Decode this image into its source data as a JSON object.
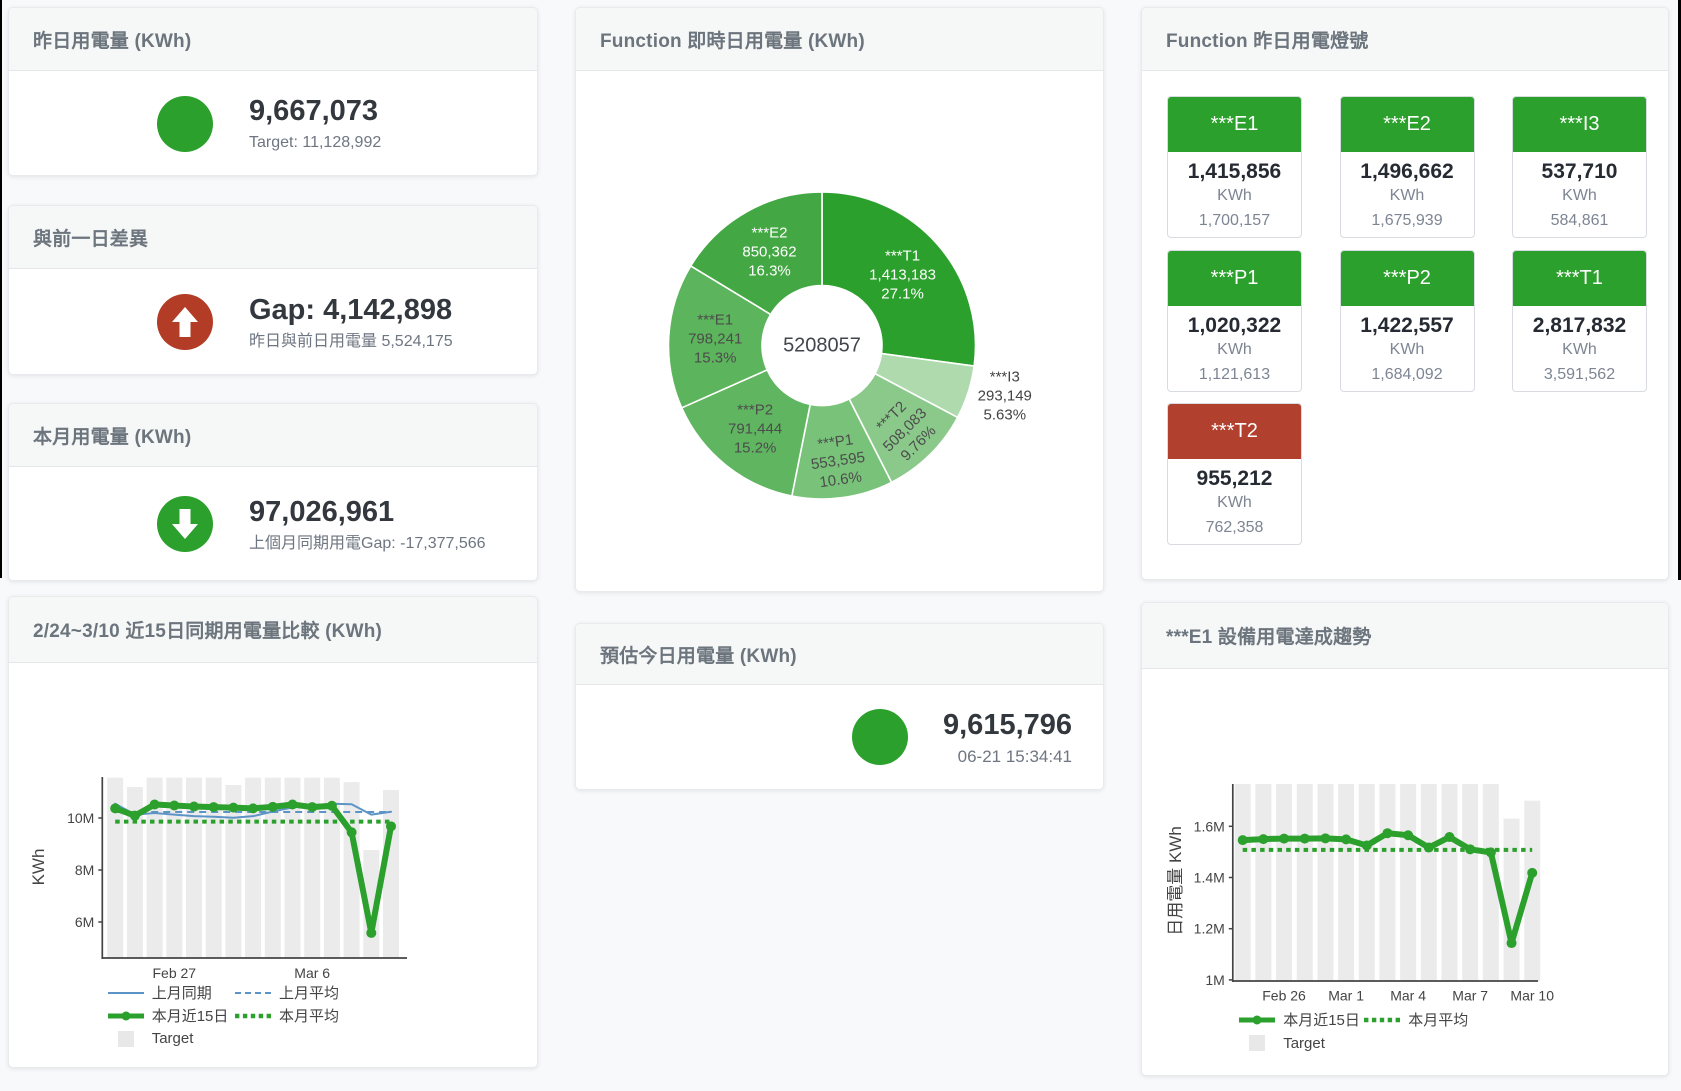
{
  "colors": {
    "green": "#2ca02c",
    "red": "#b23c26",
    "blue": "#5d94c6",
    "target_bar": "#ebebeb",
    "tile_green": "#2ca02c",
    "tile_red": "#b2402e"
  },
  "cards": {
    "yesterday": {
      "title": "昨日用電量 (KWh)",
      "value": "9,667,073",
      "subtitle": "Target: 11,128,992",
      "indicator": "circle",
      "status_color": "#2ca02c"
    },
    "gap_prev_day": {
      "title": "與前一日差異",
      "value": "Gap: 4,142,898",
      "subtitle": "昨日與前日用電量 5,524,175",
      "indicator": "arrow-up",
      "status_color": "#b23c26"
    },
    "month": {
      "title": "本月用電量 (KWh)",
      "value": "97,026,961",
      "subtitle": "上個月同期用電Gap: -17,377,566",
      "indicator": "arrow-down",
      "status_color": "#2ca02c"
    },
    "today_estimate": {
      "title": "預估今日用電量 (KWh)",
      "value": "9,615,796",
      "subtitle": "06-21 15:34:41",
      "indicator": "circle",
      "status_color": "#2ca02c"
    },
    "realtime_donut": {
      "title": "Function 即時日用電量 (KWh)"
    },
    "lights": {
      "title": "Function 昨日用電燈號",
      "unit": "KWh",
      "tiles": [
        {
          "name": "***E1",
          "value": "1,415,856",
          "unit": "KWh",
          "target": "1,700,157",
          "status": "green"
        },
        {
          "name": "***E2",
          "value": "1,496,662",
          "unit": "KWh",
          "target": "1,675,939",
          "status": "green"
        },
        {
          "name": "***I3",
          "value": "537,710",
          "unit": "KWh",
          "target": "584,861",
          "status": "green"
        },
        {
          "name": "***P1",
          "value": "1,020,322",
          "unit": "KWh",
          "target": "1,121,613",
          "status": "green"
        },
        {
          "name": "***P2",
          "value": "1,422,557",
          "unit": "KWh",
          "target": "1,684,092",
          "status": "green"
        },
        {
          "name": "***T1",
          "value": "2,817,832",
          "unit": "KWh",
          "target": "3,591,562",
          "status": "green"
        },
        {
          "name": "***T2",
          "value": "955,212",
          "unit": "KWh",
          "target": "762,358",
          "status": "red"
        }
      ]
    },
    "compare_chart": {
      "title": "2/24~3/10 近15日同期用電量比較 (KWh)"
    },
    "e1_trend_chart": {
      "title": "***E1 設備用電達成趨勢"
    }
  },
  "chart_data": [
    {
      "id": "donut",
      "type": "pie",
      "title": "Function 即時日用電量 (KWh)",
      "center_total": "5208057",
      "slices": [
        {
          "name": "***T1",
          "value": 1413183,
          "display": "1,413,183",
          "pct": "27.1%",
          "color": "#2ca02c",
          "label_pos": "inside",
          "label_color": "#ffffff",
          "label_r": 107,
          "label_rotate": 0
        },
        {
          "name": "***I3",
          "value": 293149,
          "display": "293,149",
          "pct": "5.63%",
          "color": "#aedaae",
          "label_pos": "outside",
          "label_color": "#444444",
          "label_r": 192,
          "label_rotate": 0,
          "label_dy": -8
        },
        {
          "name": "***T2",
          "value": 508083,
          "display": "508,083",
          "pct": "9.76%",
          "color": "#8bc98b",
          "label_pos": "inside",
          "label_color": "#4c4c4c",
          "label_r": 119,
          "label_rotate": -45
        },
        {
          "name": "***P1",
          "value": 553595,
          "display": "553,595",
          "pct": "10.6%",
          "color": "#79c279",
          "label_pos": "inside",
          "label_color": "#4c4c4c",
          "label_r": 117,
          "label_rotate": -8
        },
        {
          "name": "***P2",
          "value": 791444,
          "display": "791,444",
          "pct": "15.2%",
          "color": "#60b660",
          "label_pos": "inside",
          "label_color": "#4c4c4c",
          "label_r": 107,
          "label_rotate": 0
        },
        {
          "name": "***E1",
          "value": 798241,
          "display": "798,241",
          "pct": "15.3%",
          "color": "#5cb45c",
          "label_pos": "inside",
          "label_color": "#4c4c4c",
          "label_r": 107,
          "label_rotate": 0
        },
        {
          "name": "***E2",
          "value": 850362,
          "display": "850,362",
          "pct": "16.3%",
          "color": "#43a843",
          "label_pos": "inside",
          "label_color": "#ffffff",
          "label_r": 107,
          "label_rotate": 0
        }
      ]
    },
    {
      "id": "compare",
      "type": "line+bar",
      "title": "2/24~3/10 近15日同期用電量比較 (KWh)",
      "ylabel": "KWh",
      "n_points": 15,
      "x_ticks": [
        {
          "i": 3,
          "label": "Feb 27"
        },
        {
          "i": 10,
          "label": "Mar 6"
        }
      ],
      "y_ticks": [
        {
          "v": 6,
          "label": "6M"
        },
        {
          "v": 8,
          "label": "8M"
        },
        {
          "v": 10,
          "label": "10M"
        }
      ],
      "ylim": [
        4.615,
        11.577
      ],
      "series": [
        {
          "name": "Target",
          "type": "bar",
          "color": "#ebebeb",
          "values": [
            11.55,
            11.19,
            11.55,
            11.55,
            11.55,
            11.55,
            11.27,
            11.55,
            11.55,
            11.55,
            11.55,
            11.55,
            11.38,
            8.77,
            11.08
          ]
        },
        {
          "name": "上月同期",
          "type": "line",
          "color": "#5d94c6",
          "width": 2,
          "values": [
            10.55,
            10.13,
            10.19,
            10.13,
            10.07,
            10.05,
            10.01,
            10.07,
            10.25,
            10.41,
            10.49,
            10.55,
            10.53,
            10.13,
            10.24
          ]
        },
        {
          "name": "上月平均",
          "type": "dash-line",
          "color": "#5d94c6",
          "width": 2,
          "avg": 10.23
        },
        {
          "name": "本月平均",
          "type": "dot-line",
          "color": "#2ca02c",
          "width": 4,
          "avg": 9.86
        },
        {
          "name": "本月近15日",
          "type": "line",
          "color": "#2ca02c",
          "width": 6,
          "markers": true,
          "values": [
            10.37,
            10.09,
            10.52,
            10.48,
            10.44,
            10.42,
            10.4,
            10.37,
            10.43,
            10.52,
            10.42,
            10.47,
            9.45,
            5.58,
            9.68
          ]
        }
      ],
      "legend": [
        {
          "name": "上月同期",
          "swatch": "line-blue"
        },
        {
          "name": "上月平均",
          "swatch": "dash-blue"
        },
        {
          "name": "本月近15日",
          "swatch": "line-green-marker"
        },
        {
          "name": "本月平均",
          "swatch": "dots-green"
        },
        {
          "name": "Target",
          "swatch": "square-gray"
        }
      ]
    },
    {
      "id": "e1trend",
      "type": "line+bar",
      "title": "***E1 設備用電達成趨勢",
      "ylabel": "日用電量 KWh",
      "n_points": 15,
      "x_ticks": [
        {
          "i": 2,
          "label": "Feb 26"
        },
        {
          "i": 5,
          "label": "Mar 1"
        },
        {
          "i": 8,
          "label": "Mar 4"
        },
        {
          "i": 11,
          "label": "Mar 7"
        },
        {
          "i": 14,
          "label": "Mar 10"
        }
      ],
      "y_ticks": [
        {
          "v": 1.0,
          "label": "1M"
        },
        {
          "v": 1.2,
          "label": "1.2M"
        },
        {
          "v": 1.4,
          "label": "1.4M"
        },
        {
          "v": 1.6,
          "label": "1.6M"
        }
      ],
      "ylim": [
        0.994,
        1.765
      ],
      "series": [
        {
          "name": "Target",
          "type": "bar",
          "color": "#ebebeb",
          "values": [
            1.78,
            1.78,
            1.78,
            1.78,
            1.78,
            1.78,
            1.78,
            1.78,
            1.78,
            1.78,
            1.78,
            1.78,
            1.78,
            1.63,
            1.7
          ]
        },
        {
          "name": "本月平均",
          "type": "dot-line",
          "color": "#2ca02c",
          "width": 4,
          "avg": 1.508
        },
        {
          "name": "本月近15日",
          "type": "line",
          "color": "#2ca02c",
          "width": 6,
          "markers": true,
          "values": [
            1.546,
            1.55,
            1.552,
            1.552,
            1.553,
            1.549,
            1.525,
            1.573,
            1.565,
            1.517,
            1.558,
            1.51,
            1.498,
            1.144,
            1.418
          ]
        }
      ],
      "legend": [
        {
          "name": "本月近15日",
          "swatch": "line-green-marker"
        },
        {
          "name": "本月平均",
          "swatch": "dots-green"
        },
        {
          "name": "Target",
          "swatch": "square-gray"
        }
      ]
    }
  ]
}
